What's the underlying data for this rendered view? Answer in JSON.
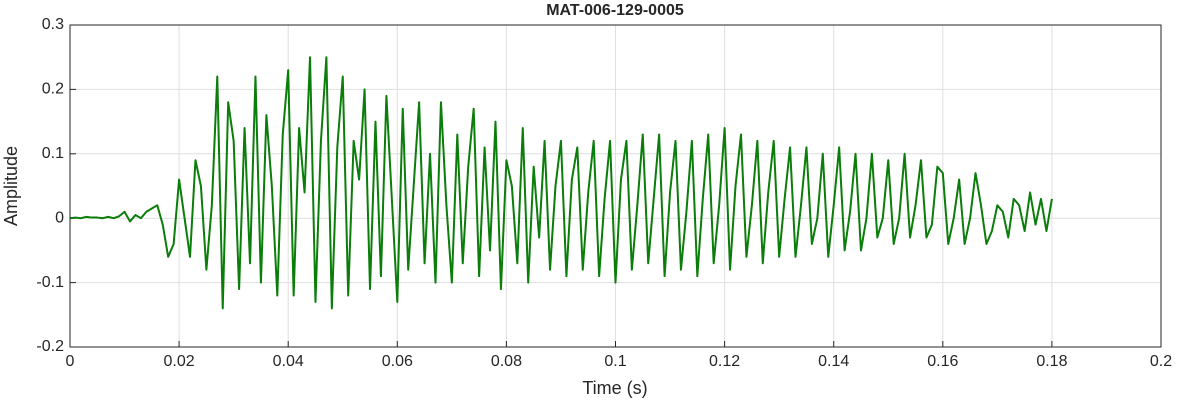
{
  "chart_data": {
    "type": "line",
    "title": "MAT-006-129-0005",
    "xlabel": "Time (s)",
    "ylabel": "Amplitude",
    "x": [
      0,
      0.001,
      0.002,
      0.003,
      0.004,
      0.005,
      0.006,
      0.007,
      0.008,
      0.009,
      0.01,
      0.011,
      0.012,
      0.013,
      0.014,
      0.015,
      0.016,
      0.017,
      0.018,
      0.019,
      0.02,
      0.021,
      0.022,
      0.023,
      0.024,
      0.025,
      0.026,
      0.027,
      0.028,
      0.029,
      0.03,
      0.031,
      0.032,
      0.033,
      0.034,
      0.035,
      0.036,
      0.037,
      0.038,
      0.039,
      0.04,
      0.041,
      0.042,
      0.043,
      0.044,
      0.045,
      0.046,
      0.047,
      0.048,
      0.049,
      0.05,
      0.051,
      0.052,
      0.053,
      0.054,
      0.055,
      0.056,
      0.057,
      0.058,
      0.059,
      0.06,
      0.061,
      0.062,
      0.063,
      0.064,
      0.065,
      0.066,
      0.067,
      0.068,
      0.069,
      0.07,
      0.071,
      0.072,
      0.073,
      0.074,
      0.075,
      0.076,
      0.077,
      0.078,
      0.079,
      0.08,
      0.081,
      0.082,
      0.083,
      0.084,
      0.085,
      0.086,
      0.087,
      0.088,
      0.089,
      0.09,
      0.091,
      0.092,
      0.093,
      0.094,
      0.095,
      0.096,
      0.097,
      0.098,
      0.099,
      0.1,
      0.101,
      0.102,
      0.103,
      0.104,
      0.105,
      0.106,
      0.107,
      0.108,
      0.109,
      0.11,
      0.111,
      0.112,
      0.113,
      0.114,
      0.115,
      0.116,
      0.117,
      0.118,
      0.119,
      0.12,
      0.121,
      0.122,
      0.123,
      0.124,
      0.125,
      0.126,
      0.127,
      0.128,
      0.129,
      0.13,
      0.131,
      0.132,
      0.133,
      0.134,
      0.135,
      0.136,
      0.137,
      0.138,
      0.139,
      0.14,
      0.141,
      0.142,
      0.143,
      0.144,
      0.145,
      0.146,
      0.147,
      0.148,
      0.149,
      0.15,
      0.151,
      0.152,
      0.153,
      0.154,
      0.155,
      0.156,
      0.157,
      0.158,
      0.159,
      0.16,
      0.161,
      0.162,
      0.163,
      0.164,
      0.165,
      0.166,
      0.167,
      0.168,
      0.169,
      0.17,
      0.171,
      0.172,
      0.173,
      0.174,
      0.175,
      0.176,
      0.177,
      0.178,
      0.179,
      0.18
    ],
    "values": [
      0,
      0.001,
      0,
      0.002,
      0.001,
      0.001,
      0,
      0.002,
      0,
      0.003,
      0.01,
      -0.005,
      0.005,
      0,
      0.01,
      0.015,
      0.02,
      -0.01,
      -0.06,
      -0.04,
      0.06,
      0,
      -0.06,
      0.09,
      0.05,
      -0.08,
      0.02,
      0.22,
      -0.14,
      0.18,
      0.12,
      -0.11,
      0.14,
      -0.07,
      0.22,
      -0.1,
      0.16,
      0.05,
      -0.12,
      0.13,
      0.23,
      -0.12,
      0.14,
      0.04,
      0.25,
      -0.13,
      0.12,
      0.25,
      -0.14,
      0.11,
      0.22,
      -0.12,
      0.12,
      0.06,
      0.2,
      -0.11,
      0.15,
      -0.09,
      0.19,
      0.03,
      -0.13,
      0.17,
      -0.08,
      0.05,
      0.18,
      -0.07,
      0.1,
      -0.1,
      0.18,
      0.02,
      -0.1,
      0.13,
      -0.07,
      0.08,
      0.17,
      -0.09,
      0.11,
      -0.05,
      0.15,
      -0.11,
      0.09,
      0.05,
      -0.07,
      0.14,
      -0.1,
      0.08,
      -0.03,
      0.12,
      -0.08,
      0.05,
      0.12,
      -0.09,
      0.06,
      0.11,
      -0.08,
      0.04,
      0.12,
      -0.09,
      0.03,
      0.12,
      -0.1,
      0.06,
      0.12,
      -0.08,
      0.02,
      0.13,
      -0.07,
      0.03,
      0.13,
      -0.09,
      0.04,
      0.12,
      -0.08,
      0.01,
      0.12,
      -0.09,
      0.03,
      0.13,
      -0.07,
      0.02,
      0.14,
      -0.08,
      0.05,
      0.13,
      -0.06,
      0.02,
      0.12,
      -0.07,
      0.04,
      0.12,
      -0.06,
      0.03,
      0.11,
      -0.06,
      0.02,
      0.11,
      -0.04,
      0,
      0.1,
      -0.06,
      0.02,
      0.11,
      -0.05,
      0.01,
      0.1,
      -0.05,
      0,
      0.1,
      -0.03,
      0,
      0.09,
      -0.04,
      0,
      0.1,
      -0.03,
      0.02,
      0.09,
      -0.03,
      -0.01,
      0.08,
      0.07,
      -0.04,
      0,
      0.06,
      -0.04,
      0,
      0.07,
      0.02,
      -0.04,
      -0.02,
      0.02,
      0.01,
      -0.03,
      0.03,
      0.02,
      -0.02,
      0.04,
      -0.01,
      0.03,
      -0.02,
      0.03
    ],
    "color": "#0a7d0a",
    "xlim": [
      0,
      0.2
    ],
    "xticks": [
      0,
      0.02,
      0.04,
      0.06,
      0.08,
      0.1,
      0.12,
      0.14,
      0.16,
      0.18,
      0.2
    ],
    "ylim": [
      -0.2,
      0.3
    ],
    "yticks": [
      -0.2,
      -0.1,
      0,
      0.1,
      0.2,
      0.3
    ],
    "grid": true
  }
}
